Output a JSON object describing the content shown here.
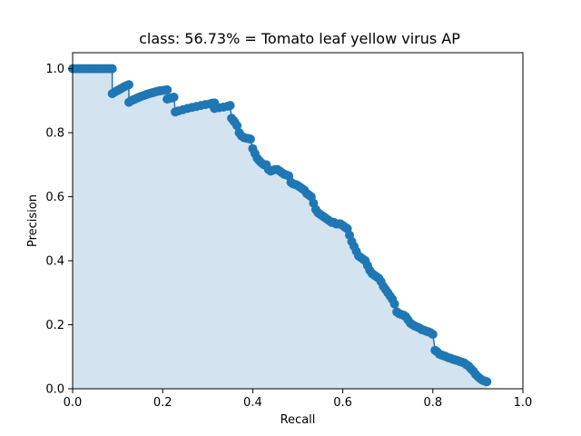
{
  "chart_data": {
    "type": "area",
    "title": "class: 56.73% = Tomato leaf yellow virus AP",
    "xlabel": "Recall",
    "ylabel": "Precision",
    "xlim": [
      0.0,
      1.0
    ],
    "ylim": [
      0.0,
      1.05
    ],
    "xticks": [
      "0.0",
      "0.2",
      "0.4",
      "0.6",
      "0.8",
      "1.0"
    ],
    "yticks": [
      "0.0",
      "0.2",
      "0.4",
      "0.6",
      "0.8",
      "1.0"
    ],
    "grid": false,
    "line_color": "#1f77b4",
    "fill_color": "#d3e3ef",
    "series": [
      {
        "x": [
          0.0,
          0.005,
          0.01,
          0.015,
          0.02,
          0.025,
          0.03,
          0.035,
          0.04,
          0.045,
          0.05,
          0.055,
          0.06,
          0.065,
          0.07,
          0.075,
          0.08,
          0.085,
          0.088,
          0.088,
          0.095,
          0.1,
          0.105,
          0.11,
          0.115,
          0.12,
          0.125,
          0.125,
          0.13,
          0.135,
          0.14,
          0.145,
          0.15,
          0.155,
          0.16,
          0.165,
          0.17,
          0.175,
          0.18,
          0.185,
          0.19,
          0.195,
          0.2,
          0.205,
          0.21,
          0.21,
          0.215,
          0.22,
          0.225,
          0.228,
          0.235,
          0.245,
          0.255,
          0.265,
          0.275,
          0.285,
          0.295,
          0.305,
          0.31,
          0.315,
          0.315,
          0.325,
          0.335,
          0.345,
          0.35,
          0.353,
          0.357,
          0.36,
          0.365,
          0.37,
          0.375,
          0.38,
          0.385,
          0.39,
          0.395,
          0.4,
          0.405,
          0.41,
          0.415,
          0.42,
          0.425,
          0.43,
          0.435,
          0.44,
          0.445,
          0.45,
          0.455,
          0.46,
          0.465,
          0.47,
          0.475,
          0.48,
          0.485,
          0.49,
          0.495,
          0.5,
          0.505,
          0.51,
          0.515,
          0.52,
          0.525,
          0.53,
          0.535,
          0.54,
          0.545,
          0.55,
          0.555,
          0.56,
          0.565,
          0.57,
          0.575,
          0.58,
          0.585,
          0.59,
          0.595,
          0.6,
          0.605,
          0.61,
          0.615,
          0.62,
          0.625,
          0.63,
          0.635,
          0.64,
          0.645,
          0.65,
          0.655,
          0.66,
          0.665,
          0.67,
          0.675,
          0.68,
          0.685,
          0.69,
          0.695,
          0.7,
          0.705,
          0.71,
          0.715,
          0.72,
          0.725,
          0.73,
          0.735,
          0.74,
          0.745,
          0.75,
          0.755,
          0.76,
          0.765,
          0.77,
          0.775,
          0.78,
          0.785,
          0.79,
          0.795,
          0.8,
          0.805,
          0.81,
          0.815,
          0.82,
          0.825,
          0.83,
          0.835,
          0.84,
          0.845,
          0.85,
          0.855,
          0.86,
          0.865,
          0.87,
          0.875,
          0.88,
          0.885,
          0.89,
          0.895,
          0.9,
          0.905,
          0.91,
          0.915,
          0.92
        ],
        "y": [
          1.0,
          1.0,
          1.0,
          1.0,
          1.0,
          1.0,
          1.0,
          1.0,
          1.0,
          1.0,
          1.0,
          1.0,
          1.0,
          1.0,
          1.0,
          1.0,
          1.0,
          1.0,
          1.0,
          0.922,
          0.928,
          0.932,
          0.936,
          0.94,
          0.944,
          0.947,
          0.95,
          0.895,
          0.9,
          0.903,
          0.906,
          0.909,
          0.912,
          0.915,
          0.917,
          0.92,
          0.922,
          0.924,
          0.926,
          0.928,
          0.93,
          0.931,
          0.932,
          0.933,
          0.934,
          0.905,
          0.907,
          0.909,
          0.911,
          0.865,
          0.868,
          0.872,
          0.876,
          0.879,
          0.882,
          0.885,
          0.888,
          0.89,
          0.892,
          0.893,
          0.876,
          0.878,
          0.88,
          0.883,
          0.885,
          0.845,
          0.838,
          0.833,
          0.822,
          0.8,
          0.79,
          0.785,
          0.783,
          0.782,
          0.78,
          0.75,
          0.735,
          0.72,
          0.712,
          0.705,
          0.7,
          0.7,
          0.685,
          0.68,
          0.683,
          0.685,
          0.685,
          0.68,
          0.675,
          0.67,
          0.668,
          0.665,
          0.645,
          0.64,
          0.638,
          0.635,
          0.63,
          0.625,
          0.62,
          0.61,
          0.605,
          0.6,
          0.58,
          0.56,
          0.55,
          0.545,
          0.54,
          0.535,
          0.53,
          0.525,
          0.52,
          0.52,
          0.515,
          0.515,
          0.515,
          0.51,
          0.505,
          0.5,
          0.48,
          0.46,
          0.445,
          0.43,
          0.415,
          0.41,
          0.405,
          0.4,
          0.385,
          0.37,
          0.36,
          0.355,
          0.35,
          0.345,
          0.335,
          0.32,
          0.31,
          0.3,
          0.29,
          0.28,
          0.265,
          0.24,
          0.235,
          0.232,
          0.23,
          0.225,
          0.215,
          0.205,
          0.2,
          0.196,
          0.193,
          0.19,
          0.185,
          0.183,
          0.18,
          0.178,
          0.175,
          0.17,
          0.12,
          0.115,
          0.108,
          0.105,
          0.103,
          0.1,
          0.097,
          0.095,
          0.092,
          0.09,
          0.088,
          0.085,
          0.083,
          0.08,
          0.075,
          0.07,
          0.062,
          0.055,
          0.045,
          0.038,
          0.032,
          0.027,
          0.024,
          0.022
        ]
      }
    ]
  }
}
